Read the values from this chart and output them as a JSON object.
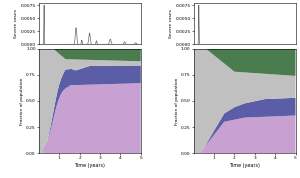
{
  "plot1": {
    "ylabel": "Severe cases",
    "line_color": "#666666",
    "ylim": [
      0,
      0.008
    ],
    "yticks": [
      0.0,
      0.0025,
      0.005,
      0.0075
    ],
    "xlim": [
      0,
      5
    ]
  },
  "plot2": {
    "ylabel": "Fraction of population",
    "xlabel": "Time (years)",
    "ylim": [
      0,
      1.0
    ],
    "yticks": [
      0.0,
      0.25,
      0.5,
      0.75,
      1.0
    ],
    "xlim": [
      0,
      5
    ],
    "color_susceptible": "#c0c0c0",
    "color_vaccinated": "#5b5ea6",
    "color_recovered": "#c8a0d2",
    "color_immune": "#4a7c4e",
    "color_infected": "#cc3333"
  },
  "plot3": {
    "ylabel": "Severe cases",
    "line_color": "#666666",
    "ylim": [
      0,
      0.008
    ],
    "yticks": [
      0.0,
      0.0025,
      0.005,
      0.0075
    ],
    "xlim": [
      0,
      5
    ]
  },
  "plot4": {
    "ylabel": "Fraction of population",
    "xlabel": "Time (years)",
    "ylim": [
      0,
      1.0
    ],
    "yticks": [
      0.0,
      0.25,
      0.5,
      0.75,
      1.0
    ],
    "xlim": [
      0,
      5
    ],
    "color_susceptible": "#c0c0c0",
    "color_vaccinated": "#5b5ea6",
    "color_recovered": "#c8a0d2",
    "color_immune": "#4a7c4e",
    "color_infected": "#cc3333"
  }
}
